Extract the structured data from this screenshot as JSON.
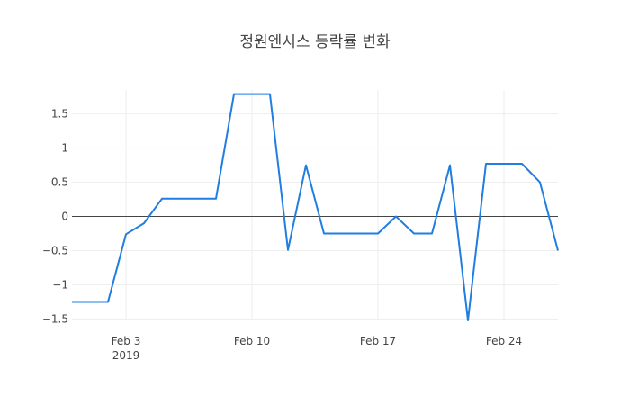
{
  "chart_data": {
    "type": "line",
    "title": "정원엔시스 등락률 변화",
    "xlabel": "",
    "ylabel": "",
    "x_tick_labels": [
      "Feb 3",
      "Feb 10",
      "Feb 17",
      "Feb 24"
    ],
    "x_tick_values": [
      "2019-02-03",
      "2019-02-10",
      "2019-02-17",
      "2019-02-24"
    ],
    "x_year_label": "2019",
    "y_tick_labels": [
      "−1.5",
      "−1",
      "−0.5",
      "0",
      "0.5",
      "1",
      "1.5"
    ],
    "y_tick_values": [
      -1.5,
      -1,
      -0.5,
      0,
      0.5,
      1,
      1.5
    ],
    "xlim": [
      "2019-01-31",
      "2019-02-27"
    ],
    "ylim": [
      -1.52,
      1.85
    ],
    "grid": true,
    "zero_line": true,
    "series_color": "#1f7ee0",
    "series": [
      {
        "name": "",
        "x": [
          "2019-01-31",
          "2019-02-01",
          "2019-02-02",
          "2019-02-03",
          "2019-02-04",
          "2019-02-05",
          "2019-02-06",
          "2019-02-07",
          "2019-02-08",
          "2019-02-09",
          "2019-02-10",
          "2019-02-11",
          "2019-02-12",
          "2019-02-13",
          "2019-02-14",
          "2019-02-15",
          "2019-02-16",
          "2019-02-17",
          "2019-02-18",
          "2019-02-19",
          "2019-02-20",
          "2019-02-21",
          "2019-02-22",
          "2019-02-23",
          "2019-02-24",
          "2019-02-25",
          "2019-02-26",
          "2019-02-27"
        ],
        "values": [
          -1.25,
          -1.25,
          -1.25,
          -0.26,
          -0.1,
          0.26,
          0.26,
          0.26,
          0.26,
          1.79,
          1.79,
          1.79,
          -0.49,
          0.75,
          -0.25,
          -0.25,
          -0.25,
          -0.25,
          0.0,
          -0.25,
          -0.25,
          0.75,
          -1.52,
          0.77,
          0.77,
          0.77,
          0.5,
          -0.5
        ]
      }
    ]
  }
}
